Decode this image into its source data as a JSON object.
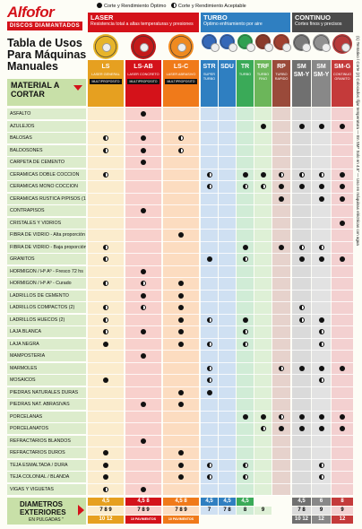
{
  "brand": {
    "name": "Alfofor",
    "tagline": "DISCOS DIAMANTADOS"
  },
  "title": [
    "Tabla de Usos",
    "Para Máquinas",
    "Manuales"
  ],
  "legend": {
    "full": "Corte y Rendimiento Óptimo",
    "half": "Corte y Rendimiento Aceptable"
  },
  "groups": [
    {
      "name": "LASER",
      "desc": "Resistencia total a altas temperaturas y presiones",
      "color": "#d4121a"
    },
    {
      "name": "TURBO",
      "desc": "Optimo enfriamiento por aire",
      "color": "#2f7fc1"
    },
    {
      "name": "CONTINUO",
      "desc": "Cortes finos y precisos",
      "color": "#4a4a4a"
    }
  ],
  "columns": [
    {
      "code": "LS",
      "desc": "LASER GENERAL",
      "tag": "MULTIPROPOSITO",
      "color": "#e6a020",
      "light": "#fbeccd",
      "disc": "#e6b42a"
    },
    {
      "code": "LS-AB",
      "desc": "LASER CONCRETO",
      "tag": "MULTIPROPOSITO",
      "color": "#d4121a",
      "light": "#f8d0cc",
      "disc": "#c41a1a"
    },
    {
      "code": "LS-C",
      "desc": "LASER ABRASIVO",
      "tag": "MULTIPROPOSITO",
      "color": "#f07a1a",
      "light": "#fcdcc0",
      "disc": "#ef8a20"
    },
    {
      "code": "STR",
      "desc": "SUPER TURBO",
      "tag": "",
      "color": "#2f7fc1",
      "light": "#cfe0f2",
      "disc": "#3468b8"
    },
    {
      "code": "SDU",
      "desc": "",
      "tag": "",
      "color": "#2f7fc1",
      "light": "#cfe0f2",
      "disc": "#3468b8"
    },
    {
      "code": "TR",
      "desc": "TURBO",
      "tag": "",
      "color": "#3aaa58",
      "light": "#d0ecd6",
      "disc": "#2fa050"
    },
    {
      "code": "TRF",
      "desc": "TURBO FINO",
      "tag": "",
      "color": "#6cb65a",
      "light": "#def0d6",
      "disc": "#8a3a2a"
    },
    {
      "code": "RP",
      "desc": "TURBO RAPIDO",
      "tag": "",
      "color": "#9a4a3a",
      "light": "#e6d2cc",
      "disc": "#a04030"
    },
    {
      "code": "SM SM-Y",
      "desc": "",
      "tag": "",
      "color": "#707070",
      "light": "#dadada",
      "disc": "#7a7a7a"
    },
    {
      "code": "SM SM-Y",
      "desc": "",
      "tag": "",
      "color": "#888888",
      "light": "#e2e2e2",
      "disc": "#909090"
    },
    {
      "code": "SM-G",
      "desc": "CONTINUO GRANITO",
      "tag": "",
      "color": "#c43a3a",
      "light": "#f3d0d0",
      "disc": "#b83a3a"
    }
  ],
  "material_header": [
    "MATERIAL A",
    "CORTAR"
  ],
  "rows": [
    {
      "name": "ASFALTO",
      "marks": [
        "",
        "F",
        "",
        "",
        "",
        "",
        "",
        "",
        "",
        "",
        ""
      ]
    },
    {
      "name": "AZULEJOS",
      "marks": [
        "",
        "",
        "",
        "",
        "",
        "",
        "F",
        "",
        "F",
        "F",
        "F"
      ]
    },
    {
      "name": "BALOSAS",
      "marks": [
        "H",
        "F",
        "H",
        "",
        "",
        "",
        "",
        "",
        "",
        "",
        ""
      ]
    },
    {
      "name": "BALDOSONES",
      "marks": [
        "H",
        "F",
        "H",
        "",
        "",
        "",
        "",
        "",
        "",
        "",
        ""
      ]
    },
    {
      "name": "CARPETA DE CEMENTO",
      "marks": [
        "",
        "F",
        "",
        "",
        "",
        "",
        "",
        "",
        "",
        "",
        ""
      ]
    },
    {
      "name": "CERAMICAS DOBLE COCCION",
      "marks": [
        "H",
        "",
        "",
        "H",
        "",
        "F",
        "F",
        "H",
        "H",
        "H",
        "F"
      ]
    },
    {
      "name": "CERAMICAS MONO COCCION",
      "marks": [
        "",
        "",
        "",
        "H",
        "",
        "H",
        "H",
        "F",
        "F",
        "F",
        "F"
      ]
    },
    {
      "name": "CERAMICAS RUSTICA P/PISOS (1)",
      "marks": [
        "",
        "",
        "",
        "",
        "",
        "",
        "",
        "F",
        "",
        "F",
        "F"
      ]
    },
    {
      "name": "CONTRAPISOS",
      "marks": [
        "",
        "F",
        "",
        "",
        "",
        "",
        "",
        "",
        "",
        "",
        ""
      ]
    },
    {
      "name": "CRISTALES Y VIDRIOS",
      "marks": [
        "",
        "",
        "",
        "",
        "",
        "",
        "",
        "",
        "",
        "",
        "F"
      ]
    },
    {
      "name": "FIBRA DE VIDRIO - Alta proporción",
      "marks": [
        "",
        "",
        "F",
        "",
        "",
        "",
        "",
        "",
        "",
        "",
        ""
      ]
    },
    {
      "name": "FIBRA DE VIDRIO - Baja proporción",
      "marks": [
        "H",
        "",
        "",
        "",
        "",
        "F",
        "",
        "F",
        "H",
        "H",
        ""
      ]
    },
    {
      "name": "GRANITOS",
      "marks": [
        "H",
        "",
        "",
        "F",
        "",
        "H",
        "",
        "",
        "F",
        "F",
        "F"
      ]
    },
    {
      "name": "HORMIGON / Hº Aº - Fresco 72 hs",
      "marks": [
        "",
        "F",
        "",
        "",
        "",
        "",
        "",
        "",
        "",
        "",
        ""
      ]
    },
    {
      "name": "HORMIGON / Hº Aº - Curado",
      "marks": [
        "H",
        "H",
        "F",
        "",
        "",
        "",
        "",
        "",
        "",
        "",
        ""
      ]
    },
    {
      "name": "LADRILLOS DE CEMENTO",
      "marks": [
        "",
        "F",
        "F",
        "",
        "",
        "",
        "",
        "",
        "",
        "",
        ""
      ]
    },
    {
      "name": "LADRILLOS COMPACTOS (2)",
      "marks": [
        "H",
        "H",
        "F",
        "",
        "",
        "",
        "",
        "",
        "H",
        "",
        ""
      ]
    },
    {
      "name": "LADRILLOS HUECOS (2)",
      "marks": [
        "H",
        "",
        "F",
        "H",
        "",
        "F",
        "",
        "",
        "H",
        "F",
        ""
      ]
    },
    {
      "name": "LAJA BLANCA",
      "marks": [
        "H",
        "F",
        "F",
        "",
        "",
        "H",
        "",
        "",
        "",
        "H",
        ""
      ]
    },
    {
      "name": "LAJA NEGRA",
      "marks": [
        "F",
        "",
        "F",
        "H",
        "",
        "H",
        "",
        "",
        "",
        "H",
        ""
      ]
    },
    {
      "name": "MAMPOSTERIA",
      "marks": [
        "",
        "F",
        "",
        "",
        "",
        "",
        "",
        "",
        "",
        "",
        ""
      ]
    },
    {
      "name": "MARMOLES",
      "marks": [
        "",
        "",
        "",
        "H",
        "",
        "",
        "",
        "H",
        "F",
        "F",
        "F"
      ]
    },
    {
      "name": "MOSAICOS",
      "marks": [
        "F",
        "",
        "",
        "H",
        "",
        "",
        "",
        "",
        "",
        "H",
        ""
      ]
    },
    {
      "name": "PIEDRAS NATURALES DURAS",
      "marks": [
        "",
        "",
        "F",
        "F",
        "",
        "",
        "",
        "",
        "",
        "",
        ""
      ]
    },
    {
      "name": "PIEDRAS NAT. ABRASIVAS",
      "marks": [
        "",
        "F",
        "F",
        "",
        "",
        "",
        "",
        "",
        "",
        "",
        ""
      ]
    },
    {
      "name": "PORCELANAS",
      "marks": [
        "",
        "",
        "",
        "",
        "",
        "F",
        "F",
        "H",
        "F",
        "F",
        "F"
      ]
    },
    {
      "name": "PORCELANATOS",
      "marks": [
        "",
        "",
        "",
        "",
        "",
        "",
        "H",
        "F",
        "F",
        "F",
        "F"
      ]
    },
    {
      "name": "REFRACTARIOS BLANDOS",
      "marks": [
        "",
        "F",
        "",
        "",
        "",
        "",
        "",
        "",
        "",
        "",
        ""
      ]
    },
    {
      "name": "REFRACTARIOS DUROS",
      "marks": [
        "F",
        "",
        "F",
        "",
        "",
        "",
        "",
        "",
        "",
        "",
        ""
      ]
    },
    {
      "name": "TEJA ESMALTADA / DURA",
      "marks": [
        "F",
        "",
        "F",
        "H",
        "",
        "H",
        "",
        "",
        "",
        "H",
        ""
      ]
    },
    {
      "name": "TEJA COLONIAL / BLANDA",
      "marks": [
        "F",
        "",
        "F",
        "H",
        "",
        "H",
        "",
        "",
        "",
        "H",
        ""
      ]
    },
    {
      "name": "VIGAS Y VIGUETAS",
      "marks": [
        "H",
        "F",
        "",
        "",
        "",
        "",
        "",
        "",
        "",
        "",
        ""
      ]
    }
  ],
  "side_note": "(1) Tentativo / Corte (2) Colocados: fijar temperatura — En SM* Solo en 4.5\" — Uso en máquinas eléctricas con agua",
  "diameters": {
    "label": [
      "DIAMETROS",
      "EXTERIORES"
    ],
    "unit": "EN PULGADAS \"",
    "cols": [
      {
        "top": "4,5",
        "mid": [
          "7",
          "8",
          "9"
        ],
        "bot": [
          "10",
          "12"
        ]
      },
      {
        "top": "4,5  8",
        "mid": [
          "7",
          "8",
          "9"
        ],
        "bot": [
          "10",
          "PAVIMENTOS"
        ]
      },
      {
        "top": "4,5  8",
        "mid": [
          "7",
          "8",
          "9"
        ],
        "bot": [
          "10",
          "PAVIMENTOS"
        ]
      },
      {
        "top": "4,5",
        "mid": [
          "7",
          ""
        ],
        "bot": [
          "",
          ""
        ]
      },
      {
        "top": "4,5",
        "mid": [
          "7",
          "8"
        ],
        "bot": [
          "",
          ""
        ]
      },
      {
        "top": "4,5",
        "mid": [
          "8",
          ""
        ],
        "bot": [
          "",
          ""
        ]
      },
      {
        "top": "",
        "mid": [
          "9",
          ""
        ],
        "bot": [
          "",
          ""
        ]
      },
      {
        "top": "",
        "mid": [
          "",
          ""
        ],
        "bot": [
          "",
          ""
        ]
      },
      {
        "top": "4,5",
        "mid": [
          "7",
          "8"
        ],
        "bot": [
          "10",
          "12"
        ]
      },
      {
        "top": "6",
        "mid": [
          "9",
          ""
        ],
        "bot": [
          "12",
          ""
        ]
      },
      {
        "top": "8",
        "mid": [
          "9",
          ""
        ],
        "bot": [
          "12",
          ""
        ]
      }
    ]
  }
}
